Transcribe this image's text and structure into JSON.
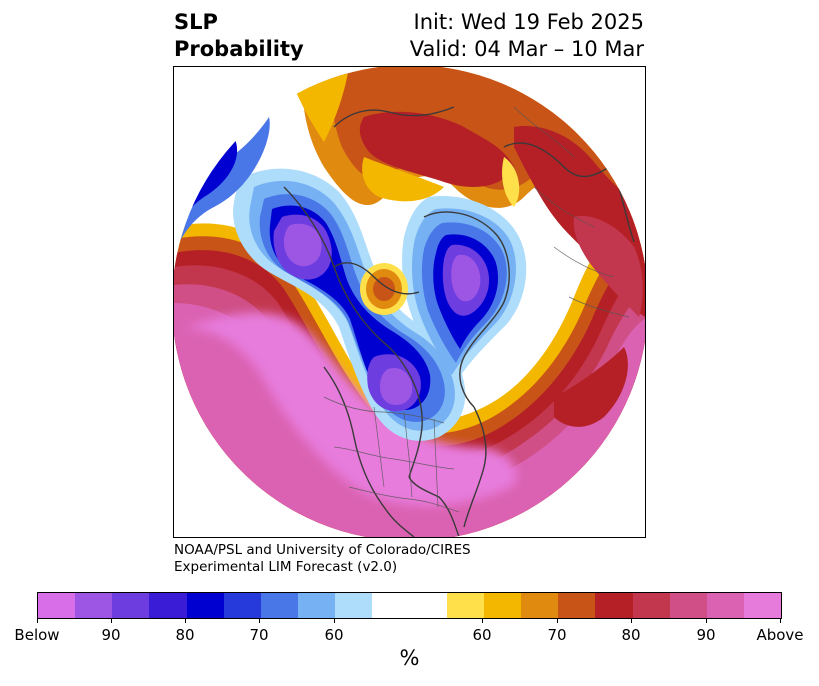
{
  "title": {
    "left_line1": "SLP",
    "left_line2": "Probability",
    "right_line1": "Init: Wed 19 Feb 2025",
    "right_line2": "Valid: 04 Mar – 10 Mar"
  },
  "credit": {
    "line1": "NOAA/PSL and University of Colorado/CIRES",
    "line2": "Experimental LIM Forecast (v2.0)"
  },
  "colorbar": {
    "colors": [
      "#d96fe8",
      "#9d56e4",
      "#6e3de0",
      "#3a1bd6",
      "#0000d0",
      "#2639db",
      "#4a77e8",
      "#76b1f3",
      "#aedcfb",
      "#ffffff",
      "#ffffff",
      "#ffe04a",
      "#f4b700",
      "#e08a10",
      "#c95418",
      "#b42025",
      "#c3374e",
      "#cf4f86",
      "#db62b2",
      "#e77bdc"
    ],
    "tick_labels": [
      "Below",
      "90",
      "80",
      "70",
      "60",
      "60",
      "70",
      "80",
      "90",
      "Above"
    ],
    "unit": "%"
  },
  "map": {
    "projection": "polar-stereographic",
    "palette": {
      "strong_above": "#e77bdc",
      "above_90": "#db62b2",
      "above_80": "#c3374e",
      "above_75": "#b42025",
      "above_70": "#c95418",
      "above_65": "#e08a10",
      "above_60": "#f4b700",
      "above_55": "#ffe04a",
      "neutral": "#ffffff",
      "below_55": "#aedcfb",
      "below_60": "#76b1f3",
      "below_65": "#4a77e8",
      "below_70": "#0000d0",
      "below_80": "#6e3de0",
      "below_90": "#9d56e4"
    }
  }
}
